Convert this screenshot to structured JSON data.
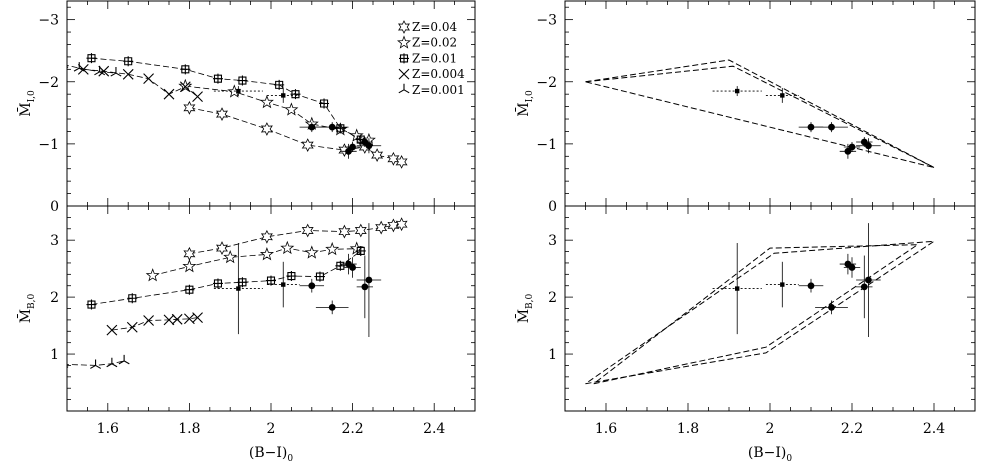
{
  "chart_data": [
    {
      "panel": "top-left",
      "type": "scatter",
      "xlim": [
        1.5,
        2.5
      ],
      "ylim": [
        0,
        -3.3
      ],
      "x_ticks": [
        1.6,
        1.8,
        2,
        2.2,
        2.4
      ],
      "y_ticks": [
        0,
        -1,
        -2,
        -3
      ],
      "ylabel": "M̄",
      "ylabel_sub": "I,0",
      "legend": {
        "placement": "top-right",
        "entries": [
          {
            "marker": "star6",
            "label": "Z=0.04"
          },
          {
            "marker": "star5",
            "label": "Z=0.02"
          },
          {
            "marker": "box",
            "label": "Z=0.01"
          },
          {
            "marker": "cross",
            "label": "Z=0.004"
          },
          {
            "marker": "tri",
            "label": "Z=0.001"
          }
        ]
      },
      "series": [
        {
          "marker": "star6",
          "label": "Z=0.04",
          "points": [
            [
              1.8,
              -1.58
            ],
            [
              1.88,
              -1.48
            ],
            [
              1.99,
              -1.24
            ],
            [
              2.09,
              -0.98
            ],
            [
              2.18,
              -0.9
            ],
            [
              2.23,
              -0.95
            ],
            [
              2.26,
              -0.82
            ],
            [
              2.3,
              -0.76
            ],
            [
              2.32,
              -0.71
            ]
          ]
        },
        {
          "marker": "star5",
          "label": "Z=0.02",
          "points": [
            [
              1.79,
              -1.93
            ],
            [
              1.91,
              -1.84
            ],
            [
              1.99,
              -1.67
            ],
            [
              2.05,
              -1.55
            ],
            [
              2.1,
              -1.32
            ],
            [
              2.17,
              -1.23
            ],
            [
              2.21,
              -1.13
            ],
            [
              2.24,
              -1.06
            ]
          ]
        },
        {
          "marker": "box",
          "label": "Z=0.01",
          "points": [
            [
              1.56,
              -2.38
            ],
            [
              1.65,
              -2.33
            ],
            [
              1.79,
              -2.2
            ],
            [
              1.87,
              -2.05
            ],
            [
              1.93,
              -2.02
            ],
            [
              2.02,
              -1.95
            ],
            [
              2.06,
              -1.8
            ],
            [
              2.13,
              -1.65
            ],
            [
              2.17,
              -1.25
            ],
            [
              2.22,
              -1.07
            ]
          ]
        },
        {
          "marker": "cross",
          "label": "Z=0.004",
          "points": [
            [
              1.54,
              -2.2
            ],
            [
              1.59,
              -2.17
            ],
            [
              1.65,
              -2.12
            ],
            [
              1.7,
              -2.05
            ],
            [
              1.75,
              -1.8
            ],
            [
              1.79,
              -1.92
            ],
            [
              1.82,
              -1.76
            ]
          ]
        },
        {
          "marker": "tri",
          "label": "Z=0.001",
          "points": [
            [
              1.49,
              -2.28
            ],
            [
              1.53,
              -2.22
            ],
            [
              1.58,
              -2.16
            ],
            [
              1.62,
              -2.14
            ]
          ]
        }
      ],
      "observations": [
        {
          "x": 2.1,
          "y": -1.27,
          "xerr": 0.03,
          "yerr": 0.08,
          "marker": "circle"
        },
        {
          "x": 2.15,
          "y": -1.27,
          "xerr": 0.04,
          "yerr": 0.08,
          "marker": "circle"
        },
        {
          "x": 2.19,
          "y": -0.88,
          "xerr": 0.02,
          "yerr": 0.12,
          "marker": "circle"
        },
        {
          "x": 2.2,
          "y": -0.95,
          "xerr": 0.02,
          "yerr": 0.08,
          "marker": "circle"
        },
        {
          "x": 2.23,
          "y": -1.03,
          "xerr": 0.02,
          "yerr": 0.08,
          "marker": "circle"
        },
        {
          "x": 2.24,
          "y": -0.97,
          "xerr": 0.03,
          "yerr": 0.12,
          "marker": "circle"
        },
        {
          "x": 1.92,
          "y": -1.85,
          "xerr": 0.06,
          "yerr": 0.08,
          "marker": "square",
          "dotted": true
        },
        {
          "x": 2.03,
          "y": -1.78,
          "xerr": 0.04,
          "yerr": 0.12,
          "marker": "square",
          "dotted": true
        }
      ]
    },
    {
      "panel": "bottom-left",
      "type": "scatter",
      "xlim": [
        1.5,
        2.5
      ],
      "ylim": [
        0,
        3.6
      ],
      "x_ticks": [
        1.6,
        1.8,
        2,
        2.2,
        2.4
      ],
      "y_ticks": [
        1,
        2,
        3
      ],
      "xlabel": "(B−I)",
      "xlabel_sub": "0",
      "ylabel": "M̄",
      "ylabel_sub": "B,0",
      "series": [
        {
          "marker": "star6",
          "label": "Z=0.04",
          "points": [
            [
              1.8,
              2.76
            ],
            [
              1.88,
              2.86
            ],
            [
              1.99,
              3.06
            ],
            [
              2.09,
              3.17
            ],
            [
              2.18,
              3.15
            ],
            [
              2.22,
              3.17
            ],
            [
              2.27,
              3.22
            ],
            [
              2.3,
              3.26
            ],
            [
              2.32,
              3.28
            ]
          ]
        },
        {
          "marker": "star5",
          "label": "Z=0.02",
          "points": [
            [
              1.71,
              2.38
            ],
            [
              1.8,
              2.54
            ],
            [
              1.9,
              2.7
            ],
            [
              1.99,
              2.75
            ],
            [
              2.04,
              2.86
            ],
            [
              2.1,
              2.78
            ],
            [
              2.15,
              2.84
            ],
            [
              2.21,
              2.85
            ]
          ]
        },
        {
          "marker": "box",
          "label": "Z=0.01",
          "points": [
            [
              1.56,
              1.87
            ],
            [
              1.66,
              1.98
            ],
            [
              1.8,
              2.13
            ],
            [
              1.87,
              2.24
            ],
            [
              1.93,
              2.26
            ],
            [
              2.0,
              2.29
            ],
            [
              2.05,
              2.37
            ],
            [
              2.12,
              2.36
            ],
            [
              2.17,
              2.55
            ],
            [
              2.22,
              2.81
            ]
          ]
        },
        {
          "marker": "cross",
          "label": "Z=0.004",
          "points": [
            [
              1.61,
              1.42
            ],
            [
              1.66,
              1.47
            ],
            [
              1.7,
              1.59
            ],
            [
              1.75,
              1.6
            ],
            [
              1.77,
              1.61
            ],
            [
              1.8,
              1.62
            ],
            [
              1.82,
              1.64
            ]
          ]
        },
        {
          "marker": "tri",
          "label": "Z=0.001",
          "points": [
            [
              1.49,
              0.82
            ],
            [
              1.57,
              0.8
            ],
            [
              1.61,
              0.83
            ],
            [
              1.64,
              0.88
            ]
          ]
        }
      ],
      "observations": [
        {
          "x": 2.1,
          "y": 2.2,
          "xerr": 0.03,
          "yerr": 0.12,
          "marker": "circle"
        },
        {
          "x": 2.15,
          "y": 1.82,
          "xerr": 0.04,
          "yerr": 0.12,
          "marker": "circle"
        },
        {
          "x": 2.19,
          "y": 2.58,
          "xerr": 0.02,
          "yerr": 0.18,
          "marker": "circle"
        },
        {
          "x": 2.2,
          "y": 2.52,
          "xerr": 0.02,
          "yerr": 0.18,
          "marker": "circle"
        },
        {
          "x": 2.23,
          "y": 2.18,
          "xerr": 0.02,
          "yerr": 0.55,
          "marker": "circle"
        },
        {
          "x": 2.24,
          "y": 2.3,
          "xerr": 0.03,
          "yerr": 1.0,
          "marker": "circle"
        },
        {
          "x": 1.92,
          "y": 2.15,
          "xerr": 0.06,
          "yerr": 0.8,
          "marker": "square",
          "dotted": true
        },
        {
          "x": 2.03,
          "y": 2.22,
          "xerr": 0.04,
          "yerr": 0.4,
          "marker": "square",
          "dotted": true
        }
      ]
    },
    {
      "panel": "top-right",
      "type": "scatter",
      "xlim": [
        1.5,
        2.5
      ],
      "ylim": [
        0,
        -3.3
      ],
      "x_ticks": [
        1.6,
        1.8,
        2,
        2.2,
        2.4
      ],
      "y_ticks": [
        0,
        -1,
        -2,
        -3
      ],
      "ylabel": "M̄",
      "ylabel_sub": "I,0",
      "envelopes": [
        [
          [
            1.55,
            -2.0
          ],
          [
            1.9,
            -2.35
          ],
          [
            2.4,
            -0.62
          ],
          [
            1.55,
            -2.0
          ]
        ],
        [
          [
            1.55,
            -2.0
          ],
          [
            1.91,
            -2.25
          ],
          [
            2.4,
            -0.62
          ]
        ]
      ],
      "observations": [
        {
          "x": 2.1,
          "y": -1.27,
          "xerr": 0.03,
          "yerr": 0.08,
          "marker": "circle"
        },
        {
          "x": 2.15,
          "y": -1.27,
          "xerr": 0.04,
          "yerr": 0.08,
          "marker": "circle"
        },
        {
          "x": 2.19,
          "y": -0.88,
          "xerr": 0.02,
          "yerr": 0.12,
          "marker": "circle"
        },
        {
          "x": 2.2,
          "y": -0.95,
          "xerr": 0.02,
          "yerr": 0.08,
          "marker": "circle"
        },
        {
          "x": 2.23,
          "y": -1.03,
          "xerr": 0.02,
          "yerr": 0.08,
          "marker": "circle"
        },
        {
          "x": 2.24,
          "y": -0.97,
          "xerr": 0.03,
          "yerr": 0.12,
          "marker": "circle"
        },
        {
          "x": 1.92,
          "y": -1.85,
          "xerr": 0.06,
          "yerr": 0.08,
          "marker": "square",
          "dotted": true
        },
        {
          "x": 2.03,
          "y": -1.78,
          "xerr": 0.04,
          "yerr": 0.12,
          "marker": "square",
          "dotted": true
        }
      ]
    },
    {
      "panel": "bottom-right",
      "type": "scatter",
      "xlim": [
        1.5,
        2.5
      ],
      "ylim": [
        0,
        3.6
      ],
      "x_ticks": [
        1.6,
        1.8,
        2,
        2.2,
        2.4
      ],
      "y_ticks": [
        1,
        2,
        3
      ],
      "xlabel": "(B−I)",
      "xlabel_sub": "0",
      "ylabel": "M̄",
      "ylabel_sub": "B,0",
      "envelopes": [
        [
          [
            1.55,
            0.48
          ],
          [
            1.99,
            1.02
          ],
          [
            2.4,
            2.98
          ],
          [
            2.01,
            2.77
          ],
          [
            1.55,
            0.48
          ]
        ],
        [
          [
            1.57,
            0.48
          ],
          [
            1.99,
            1.12
          ],
          [
            2.36,
            2.92
          ],
          [
            2.0,
            2.86
          ],
          [
            1.57,
            0.48
          ]
        ]
      ],
      "observations": [
        {
          "x": 2.1,
          "y": 2.2,
          "xerr": 0.03,
          "yerr": 0.12,
          "marker": "circle"
        },
        {
          "x": 2.15,
          "y": 1.82,
          "xerr": 0.04,
          "yerr": 0.12,
          "marker": "circle"
        },
        {
          "x": 2.19,
          "y": 2.58,
          "xerr": 0.02,
          "yerr": 0.18,
          "marker": "circle"
        },
        {
          "x": 2.2,
          "y": 2.52,
          "xerr": 0.02,
          "yerr": 0.18,
          "marker": "circle"
        },
        {
          "x": 2.23,
          "y": 2.18,
          "xerr": 0.02,
          "yerr": 0.55,
          "marker": "circle"
        },
        {
          "x": 2.24,
          "y": 2.3,
          "xerr": 0.03,
          "yerr": 1.0,
          "marker": "circle"
        },
        {
          "x": 1.92,
          "y": 2.15,
          "xerr": 0.06,
          "yerr": 0.8,
          "marker": "square",
          "dotted": true
        },
        {
          "x": 2.03,
          "y": 2.22,
          "xerr": 0.04,
          "yerr": 0.4,
          "marker": "square",
          "dotted": true
        }
      ]
    }
  ]
}
